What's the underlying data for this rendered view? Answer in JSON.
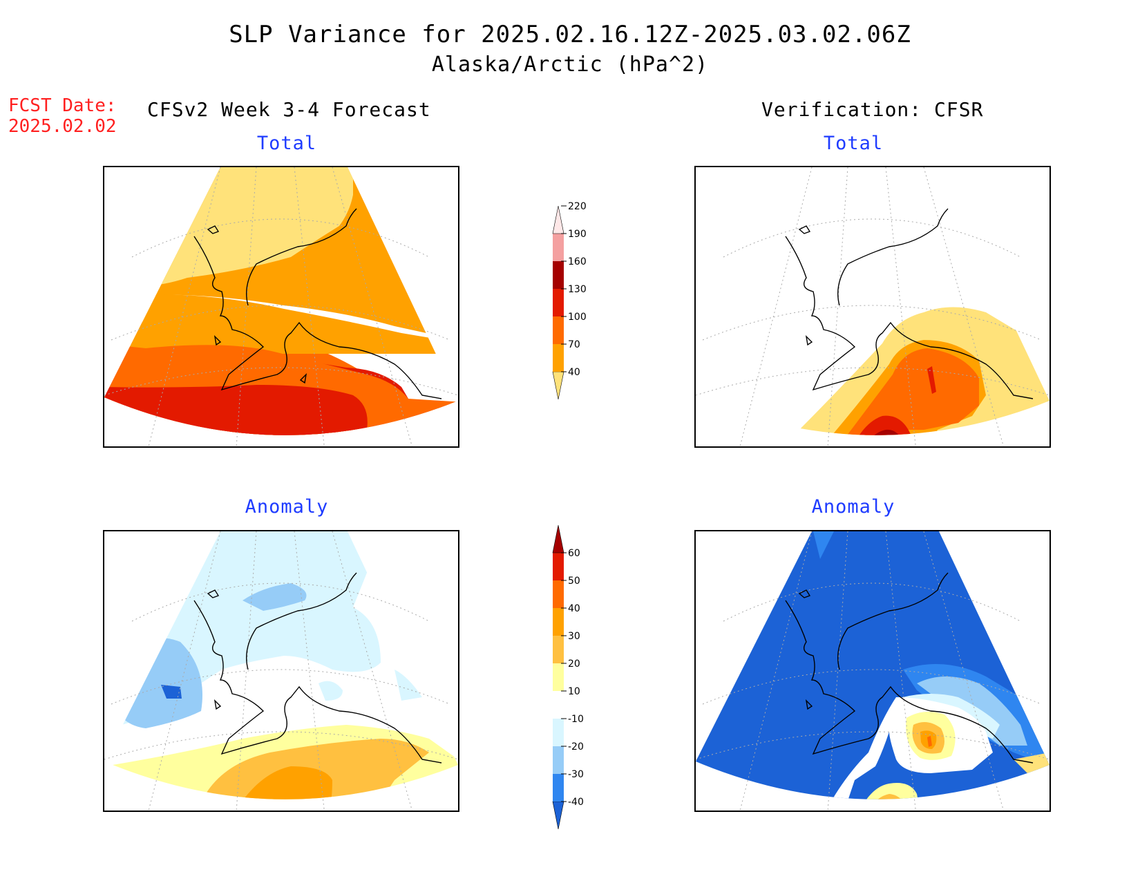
{
  "header": {
    "title": "SLP Variance for 2025.02.16.12Z-2025.03.02.06Z",
    "subtitle": "Alaska/Arctic (hPa^2)"
  },
  "fcst": {
    "label": "FCST Date:",
    "date": "2025.02.02"
  },
  "columns": {
    "left": "CFSv2 Week 3-4 Forecast",
    "right": "Verification: CFSR"
  },
  "panels": {
    "forecast_total": "Total",
    "forecast_anomaly": "Anomaly",
    "verification_total": "Total",
    "verification_anomaly": "Anomaly"
  },
  "colorbars": {
    "total": {
      "labels": [
        "40",
        "70",
        "100",
        "130",
        "160",
        "190",
        "220"
      ],
      "colors": [
        "#ffe27a",
        "#ffa100",
        "#ff6a00",
        "#e31a00",
        "#a50000",
        "#f4a0a0",
        "#ffe8e8"
      ]
    },
    "anomaly": {
      "labels": [
        "-40",
        "-30",
        "-20",
        "-10",
        "10",
        "20",
        "30",
        "40",
        "50",
        "60"
      ],
      "colors": [
        "#1c62d6",
        "#2f86f0",
        "#96ccf7",
        "#d9f6ff",
        "#ffffff",
        "#ffff9e",
        "#ffc040",
        "#ffa100",
        "#ff6a00",
        "#e31a00",
        "#a50000"
      ]
    }
  }
}
